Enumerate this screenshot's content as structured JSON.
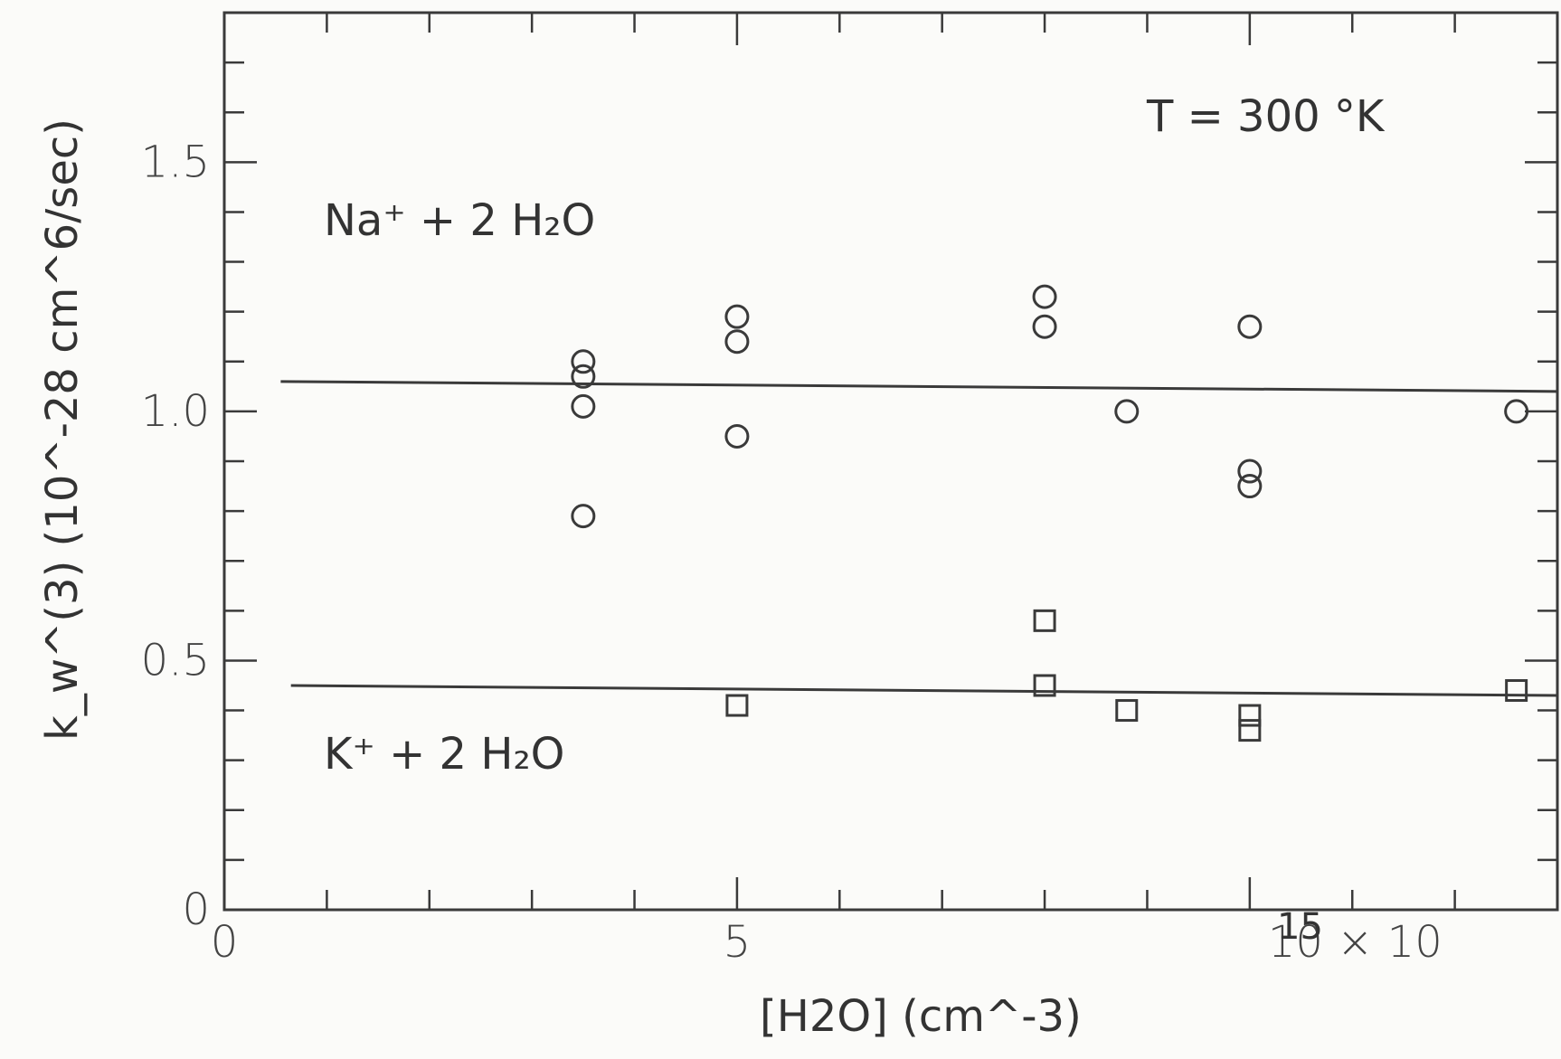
{
  "chart_data": {
    "type": "scatter",
    "title": "",
    "xlabel": "[H2O] (cm^-3)",
    "ylabel": "k_w^(3) (10^-28 cm^6/sec)",
    "xlim": [
      0,
      13
    ],
    "ylim": [
      0,
      1.8
    ],
    "x_ticks_major": [
      0,
      5,
      10
    ],
    "x_tick_labels": [
      "0",
      "5",
      "10 × 10"
    ],
    "x_tick_exponent": "15",
    "y_ticks_major": [
      0,
      0.5,
      1.0,
      1.5
    ],
    "y_tick_labels": [
      "0",
      "0.5",
      "1.0",
      "1.5"
    ],
    "grid": false,
    "annotations": {
      "temperature": "T = 300 °K",
      "na_label": "Na⁺ + 2 H₂O",
      "k_label": "K⁺ +  2 H₂O"
    },
    "series": [
      {
        "marker": "circle",
        "x": [
          3.5,
          3.5,
          3.5,
          3.5,
          5.0,
          5.0,
          5.0,
          8.0,
          8.0,
          8.8,
          10.0,
          10.0,
          10.0,
          12.6
        ],
        "y": [
          1.1,
          1.07,
          1.01,
          0.79,
          1.19,
          1.14,
          0.95,
          1.23,
          1.17,
          1.0,
          1.17,
          0.88,
          0.85,
          1.0
        ]
      },
      {
        "marker": "square",
        "x": [
          5.0,
          8.0,
          8.0,
          8.8,
          10.0,
          10.0,
          12.6
        ],
        "y": [
          0.41,
          0.58,
          0.45,
          0.4,
          0.39,
          0.36,
          0.44
        ]
      }
    ],
    "fit_lines": [
      {
        "x": [
          0.55,
          13.0
        ],
        "y": [
          1.06,
          1.04
        ]
      },
      {
        "x": [
          0.65,
          13.0
        ],
        "y": [
          0.45,
          0.43
        ]
      }
    ]
  },
  "colors": {
    "ink": "#3a3a3a",
    "background": "#fbfbf9"
  }
}
